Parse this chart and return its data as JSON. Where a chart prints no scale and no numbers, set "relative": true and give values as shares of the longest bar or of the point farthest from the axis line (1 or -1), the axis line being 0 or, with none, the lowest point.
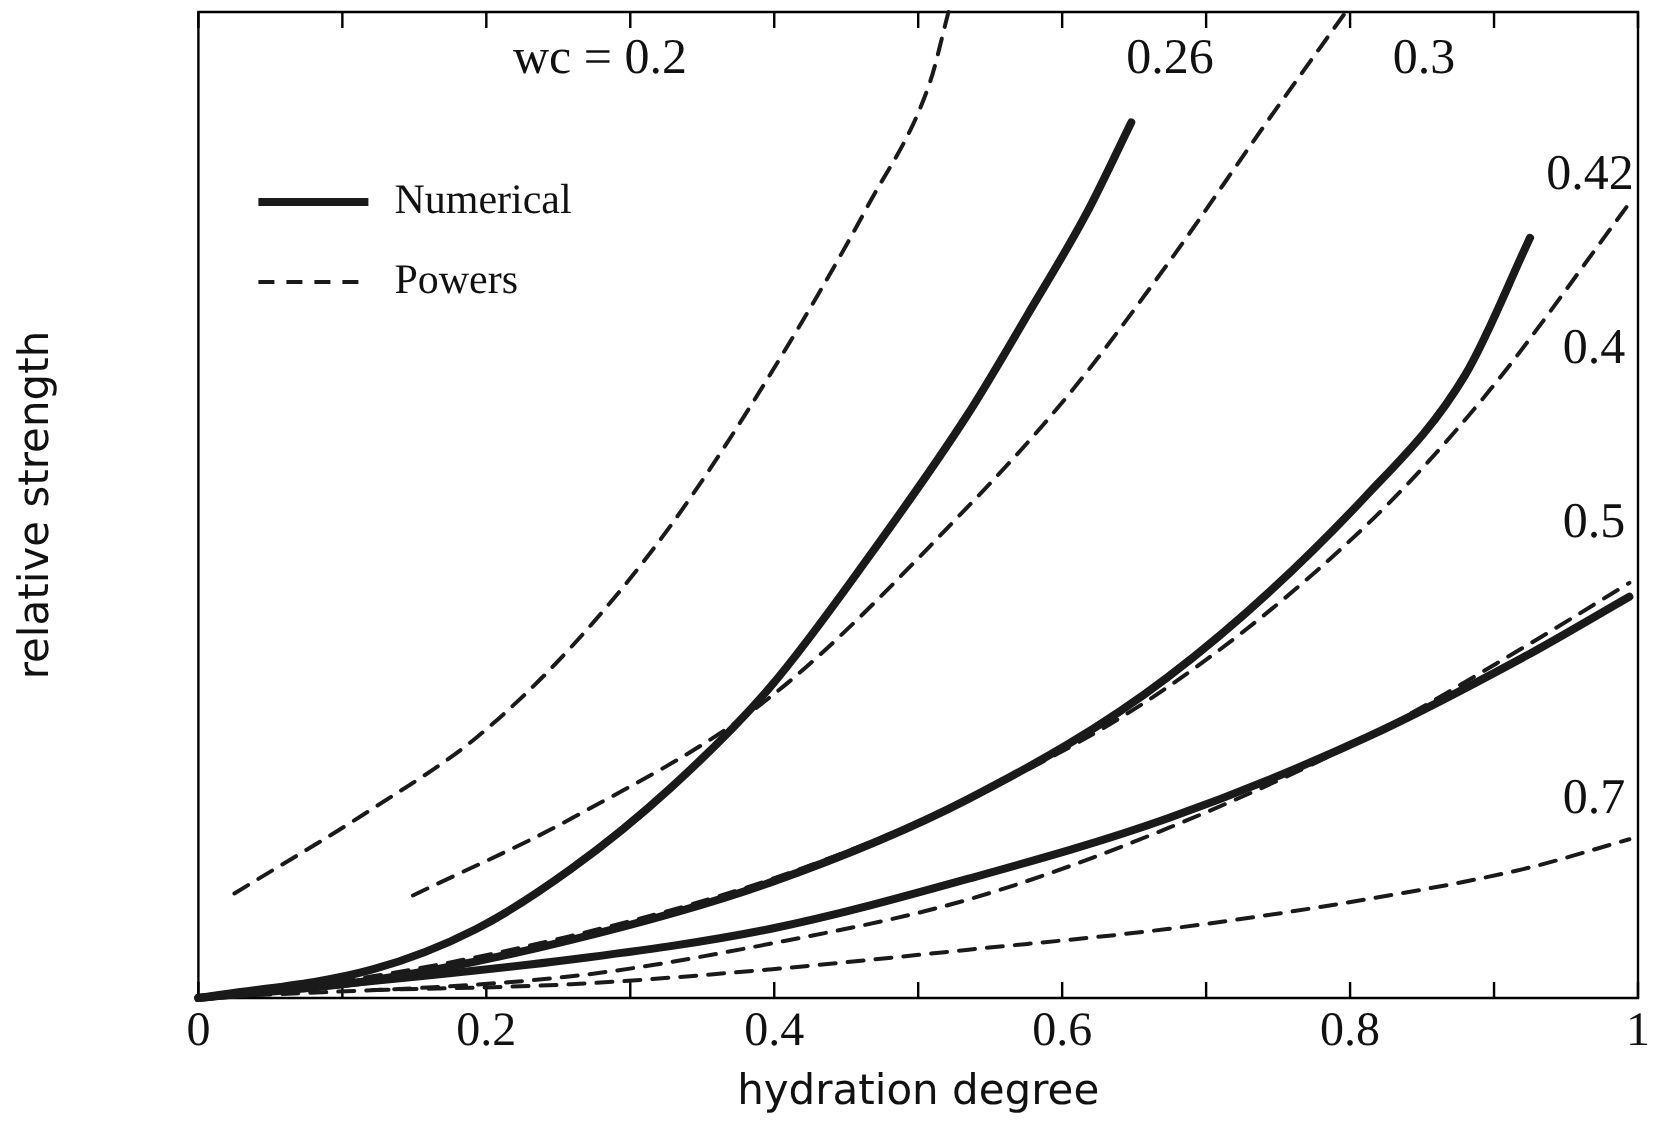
{
  "chart_data": {
    "type": "line",
    "relative": true,
    "xlabel": "hydration degree",
    "ylabel": "relative strength",
    "legend": "top left",
    "grid": false,
    "marker": "none",
    "xlim": [
      0,
      1
    ],
    "xticks": [
      0,
      {
        "value": 0.1,
        "label": null
      },
      {
        "value": 0.2,
        "label": "0.2"
      },
      {
        "value": 0.3,
        "label": null
      },
      {
        "value": 0.4,
        "label": "0.4"
      },
      {
        "value": 0.5,
        "label": null
      },
      {
        "value": 0.6,
        "label": "0.6"
      },
      {
        "value": 0.7,
        "label": null
      },
      {
        "value": 0.8,
        "label": "0.8"
      },
      {
        "value": 0.9,
        "label": null
      },
      1
    ],
    "series": [
      {
        "name": "Numerical",
        "color": "#1a1a1a",
        "line_style": "solid",
        "x": [
          0,
          0.121,
          0.193,
          0.259,
          0.328,
          0.397,
          0.466,
          0.534,
          0.576,
          0.617,
          0.648
        ],
        "values": [
          0,
          0.029,
          0.07,
          0.131,
          0.213,
          0.315,
          0.448,
          0.591,
          0.693,
          0.796,
          0.888
        ]
      },
      {
        "color": "#1a1a1a",
        "line_style": "solid",
        "x": [
          0,
          0.121,
          0.259,
          0.397,
          0.535,
          0.673,
          0.811,
          0.88,
          0.925
        ],
        "values": [
          0,
          0.018,
          0.059,
          0.117,
          0.202,
          0.325,
          0.509,
          0.632,
          0.771
        ]
      },
      {
        "color": "#1a1a1a",
        "line_style": "solid",
        "x": [
          0,
          0.259,
          0.397,
          0.535,
          0.673,
          0.811,
          0.921,
          0.994
        ],
        "values": [
          0,
          0.039,
          0.07,
          0.121,
          0.182,
          0.264,
          0.346,
          0.407
        ]
      },
      {
        "name": "Powers",
        "color": "#1a1a1a",
        "line_style": "dashed",
        "x": [
          0.025,
          0.121,
          0.193,
          0.259,
          0.328,
          0.397,
          0.466,
          0.508,
          0.521
        ],
        "values": [
          0.106,
          0.192,
          0.264,
          0.356,
          0.479,
          0.632,
          0.806,
          0.928,
          1
        ]
      },
      {
        "color": "#1a1a1a",
        "line_style": "dashed",
        "x": [
          0.149,
          0.259,
          0.397,
          0.535,
          0.604,
          0.673,
          0.742,
          0.797
        ],
        "values": [
          0.104,
          0.182,
          0.305,
          0.499,
          0.611,
          0.744,
          0.888,
          1
        ]
      },
      {
        "color": "#1a1a1a",
        "line_style": "dashed",
        "x": [
          0,
          0.121,
          0.259,
          0.397,
          0.535,
          0.673,
          0.811,
          0.894,
          0.994
        ],
        "values": [
          0,
          0.022,
          0.063,
          0.12,
          0.202,
          0.315,
          0.479,
          0.611,
          0.806
        ]
      },
      {
        "color": "#1a1a1a",
        "line_style": "dashed",
        "x": [
          0,
          0.259,
          0.397,
          0.535,
          0.673,
          0.811,
          0.921,
          0.994
        ],
        "values": [
          0,
          0.022,
          0.055,
          0.1,
          0.172,
          0.264,
          0.356,
          0.421
        ]
      },
      {
        "color": "#1a1a1a",
        "line_style": "dashed",
        "x": [
          0.121,
          0.259,
          0.397,
          0.535,
          0.673,
          0.811,
          0.921,
          0.994
        ],
        "values": [
          0.008,
          0.014,
          0.029,
          0.049,
          0.07,
          0.1,
          0.131,
          0.161
        ]
      }
    ],
    "annotations": [
      "wc = 0.2",
      "0.26",
      "0.3",
      "0.42",
      "0.4",
      "0.5",
      "0.7"
    ]
  }
}
